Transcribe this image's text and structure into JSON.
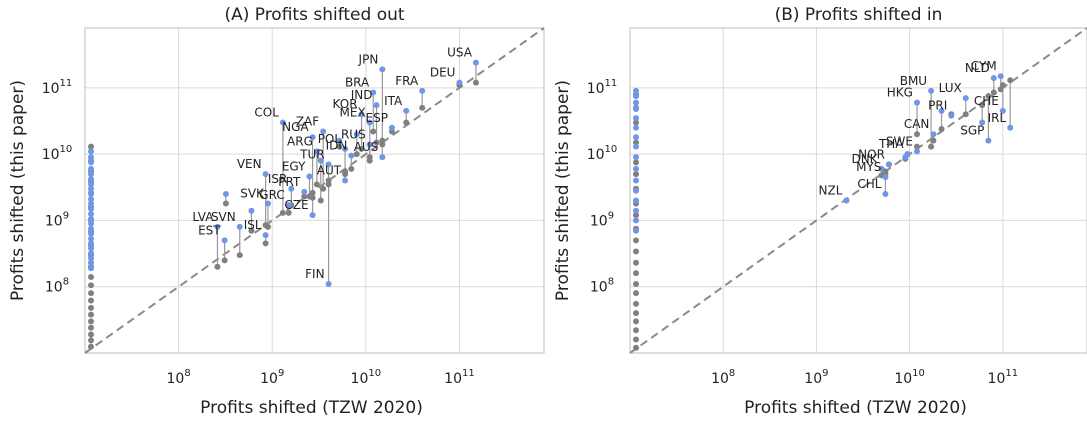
{
  "colors": {
    "this_paper": "#6f96e8",
    "tzw": "#808080",
    "connector": "#9a9a9a",
    "diag": "#8a8a8a",
    "grid": "#d9d9d9",
    "frame": "#bdbdbd"
  },
  "chart_data": [
    {
      "type": "scatter",
      "title": "(A) Profits shifted out",
      "xlabel": "Profits shifted (TZW 2020)",
      "ylabel": "Profits shifted (this paper)",
      "xscale": "log",
      "yscale": "log",
      "xlim": [
        10000000,
        800000000000
      ],
      "ylim": [
        10000000,
        800000000000
      ],
      "xticks": [
        {
          "base": "10",
          "exp": "8",
          "value": 100000000
        },
        {
          "base": "10",
          "exp": "9",
          "value": 1000000000
        },
        {
          "base": "10",
          "exp": "10",
          "value": 10000000000
        },
        {
          "base": "10",
          "exp": "11",
          "value": 100000000000
        }
      ],
      "yticks": [
        {
          "base": "10",
          "exp": "8",
          "value": 100000000
        },
        {
          "base": "10",
          "exp": "9",
          "value": 1000000000
        },
        {
          "base": "10",
          "exp": "10",
          "value": 10000000000
        },
        {
          "base": "10",
          "exp": "11",
          "value": 100000000000
        }
      ],
      "grid": true,
      "reference_line": "45-degree",
      "labeled_points": [
        {
          "label": "USA",
          "x": 150000000000,
          "y": 240000000000,
          "tzw": 120000000000
        },
        {
          "label": "DEU",
          "x": 100000000000,
          "y": 120000000000,
          "tzw": 110000000000
        },
        {
          "label": "JPN",
          "x": 15000000000,
          "y": 190000000000,
          "tzw": 16000000000
        },
        {
          "label": "FRA",
          "x": 40000000000,
          "y": 90000000000,
          "tzw": 50000000000
        },
        {
          "label": "BRA",
          "x": 12000000000,
          "y": 85000000000,
          "tzw": 22000000000
        },
        {
          "label": "IND",
          "x": 13000000000,
          "y": 55000000000,
          "tzw": 15000000000
        },
        {
          "label": "ITA",
          "x": 27000000000,
          "y": 45000000000,
          "tzw": 30000000000
        },
        {
          "label": "KOR",
          "x": 9000000000,
          "y": 40000000000,
          "tzw": 12000000000
        },
        {
          "label": "MEX",
          "x": 11000000000,
          "y": 30000000000,
          "tzw": 9000000000
        },
        {
          "label": "ESP",
          "x": 19000000000,
          "y": 25000000000,
          "tzw": 22000000000
        },
        {
          "label": "COL",
          "x": 1300000000,
          "y": 30000000000,
          "tzw": 1300000000
        },
        {
          "label": "ZAF",
          "x": 3500000000,
          "y": 22000000000,
          "tzw": 3000000000
        },
        {
          "label": "NGA",
          "x": 2700000000,
          "y": 18000000000,
          "tzw": 2600000000
        },
        {
          "label": "RUS",
          "x": 11000000000,
          "y": 14000000000,
          "tzw": 8000000000
        },
        {
          "label": "POL",
          "x": 6000000000,
          "y": 12000000000,
          "tzw": 5000000000
        },
        {
          "label": "ARG",
          "x": 3000000000,
          "y": 11000000000,
          "tzw": 3500000000
        },
        {
          "label": "IDN",
          "x": 7000000000,
          "y": 9500000000,
          "tzw": 6000000000
        },
        {
          "label": "AUS",
          "x": 15000000000,
          "y": 9000000000,
          "tzw": 14000000000
        },
        {
          "label": "TUR",
          "x": 4000000000,
          "y": 7000000000,
          "tzw": 3500000000
        },
        {
          "label": "VEN",
          "x": 850000000,
          "y": 5000000000,
          "tzw": 850000000
        },
        {
          "label": "EGY",
          "x": 2500000000,
          "y": 4600000000,
          "tzw": 2300000000
        },
        {
          "label": "AUT",
          "x": 6000000000,
          "y": 4000000000,
          "tzw": 5500000000
        },
        {
          "label": "ISR",
          "x": 1600000000,
          "y": 3000000000,
          "tzw": 1700000000
        },
        {
          "label": "PRT",
          "x": 2200000000,
          "y": 2700000000,
          "tzw": 2300000000
        },
        {
          "label": "SVK",
          "x": 900000000,
          "y": 1800000000,
          "tzw": 800000000
        },
        {
          "label": "GRC",
          "x": 1500000000,
          "y": 1700000000,
          "tzw": 1300000000
        },
        {
          "label": "CZE",
          "x": 2700000000,
          "y": 1200000000,
          "tzw": 2200000000
        },
        {
          "label": "LVA",
          "x": 260000000,
          "y": 800000000,
          "tzw": 200000000
        },
        {
          "label": "SVN",
          "x": 450000000,
          "y": 800000000,
          "tzw": 300000000
        },
        {
          "label": "EST",
          "x": 310000000,
          "y": 500000000,
          "tzw": 250000000
        },
        {
          "label": "ISL",
          "x": 850000000,
          "y": 600000000,
          "tzw": 450000000
        },
        {
          "label": "FIN",
          "x": 4000000000,
          "y": 110000000,
          "tzw": 4000000000
        }
      ],
      "extra_points": [
        {
          "x": 320000000,
          "y": 2500000000,
          "tzw": 1800000000
        },
        {
          "x": 600000000,
          "y": 1400000000,
          "tzw": 700000000
        },
        {
          "x": 3300000000,
          "y": 8000000000,
          "tzw": 2000000000
        },
        {
          "x": 5200000000,
          "y": 16000000000,
          "tzw": 13000000000
        },
        {
          "x": 8000000000,
          "y": 20000000000,
          "tzw": 10000000000
        }
      ],
      "axis_points_blue": [
        11000000000.0,
        9000000000.0,
        7500000000.0,
        6000000000.0,
        5000000000.0,
        4200000000.0,
        3500000000.0,
        3000000000.0,
        2500000000.0,
        2100000000.0,
        1800000000.0,
        1500000000.0,
        1250000000.0,
        1050000000.0,
        900000000.0,
        750000000.0,
        630000000.0,
        530000000.0,
        450000000.0,
        380000000.0,
        320000000.0,
        270000000.0,
        230000000.0,
        190000000.0
      ],
      "axis_points_grey": [
        13000000000.0,
        8000000000.0,
        5500000000.0,
        3800000000.0,
        2600000000.0,
        1600000000.0,
        1000000000.0,
        680000000.0,
        420000000.0,
        300000000.0,
        200000000.0,
        140000000.0,
        105000000.0,
        80000000.0,
        62000000.0,
        48000000.0,
        38000000.0,
        30000000.0,
        24000000.0,
        19000000.0,
        15500000.0,
        12500000.0
      ]
    },
    {
      "type": "scatter",
      "title": "(B) Profits shifted in",
      "xlabel": "Profits shifted (TZW 2020)",
      "ylabel": "Profits shifted (this paper)",
      "xscale": "log",
      "yscale": "log",
      "xlim": [
        10000000,
        800000000000
      ],
      "ylim": [
        10000000,
        800000000000
      ],
      "xticks": [
        {
          "base": "10",
          "exp": "8",
          "value": 100000000
        },
        {
          "base": "10",
          "exp": "9",
          "value": 1000000000
        },
        {
          "base": "10",
          "exp": "10",
          "value": 10000000000
        },
        {
          "base": "10",
          "exp": "11",
          "value": 100000000000
        }
      ],
      "yticks": [
        {
          "base": "10",
          "exp": "8",
          "value": 100000000
        },
        {
          "base": "10",
          "exp": "9",
          "value": 1000000000
        },
        {
          "base": "10",
          "exp": "10",
          "value": 10000000000
        },
        {
          "base": "10",
          "exp": "11",
          "value": 100000000000
        }
      ],
      "grid": true,
      "reference_line": "45-degree",
      "labeled_points": [
        {
          "label": "NLD",
          "x": 80000000000,
          "y": 140000000000,
          "tzw": 85000000000
        },
        {
          "label": "CYM",
          "x": 95000000000,
          "y": 150000000000,
          "tzw": 95000000000
        },
        {
          "label": "BMU",
          "x": 17000000000,
          "y": 90000000000,
          "tzw": 13000000000
        },
        {
          "label": "HKG",
          "x": 12000000000,
          "y": 60000000000,
          "tzw": 20000000000
        },
        {
          "label": "LUX",
          "x": 40000000000,
          "y": 70000000000,
          "tzw": 40000000000
        },
        {
          "label": "CHE",
          "x": 100000000000,
          "y": 45000000000,
          "tzw": 110000000000
        },
        {
          "label": "PRI",
          "x": 28000000000,
          "y": 38000000000,
          "tzw": 40000000000
        },
        {
          "label": "SGP",
          "x": 70000000000,
          "y": 16000000000,
          "tzw": 75000000000
        },
        {
          "label": "IRL",
          "x": 120000000000,
          "y": 25000000000,
          "tzw": 130000000000
        },
        {
          "label": "CAN",
          "x": 18000000000,
          "y": 20000000000,
          "tzw": 16000000000
        },
        {
          "label": "THA",
          "x": 9500000000,
          "y": 10000000000,
          "tzw": 10000000000
        },
        {
          "label": "SWE",
          "x": 12000000000,
          "y": 11000000000,
          "tzw": 13000000000
        },
        {
          "label": "DNK",
          "x": 5000000000,
          "y": 6000000000,
          "tzw": 4800000000
        },
        {
          "label": "NOR",
          "x": 6000000000,
          "y": 7000000000,
          "tzw": 7000000000
        },
        {
          "label": "MYS",
          "x": 5500000000,
          "y": 4500000000,
          "tzw": 5000000000
        },
        {
          "label": "CHL",
          "x": 5500000000,
          "y": 2500000000,
          "tzw": 5500000000
        },
        {
          "label": "NZL",
          "x": 2100000000,
          "y": 2000000000,
          "tzw": 2000000000
        }
      ],
      "extra_points": [
        {
          "x": 22000000000,
          "y": 45000000000,
          "tzw": 24000000000
        },
        {
          "x": 9000000000,
          "y": 9000000000,
          "tzw": 8500000000
        },
        {
          "x": 60000000000,
          "y": 30000000000,
          "tzw": 55000000000
        }
      ],
      "axis_points_blue": [
        90000000000.0,
        75000000000.0,
        60000000000.0,
        48000000000.0,
        35000000000.0,
        25000000000.0,
        18000000000.0,
        13000000000.0,
        9000000000.0,
        6000000000.0,
        4000000000.0,
        2800000000.0,
        2000000000.0,
        1400000000.0,
        1000000000.0,
        700000000.0
      ],
      "axis_points_grey": [
        80000000000.0,
        50000000000.0,
        30000000000.0,
        15000000000.0,
        7500000000.0,
        5000000000.0,
        3000000000.0,
        1800000000.0,
        1200000000.0,
        750000000.0,
        500000000.0,
        340000000.0,
        230000000.0,
        160000000.0,
        110000000.0,
        80000000.0,
        55000000.0,
        40000000.0,
        30000000.0,
        22000000.0,
        16000000.0,
        12000000.0
      ]
    }
  ]
}
